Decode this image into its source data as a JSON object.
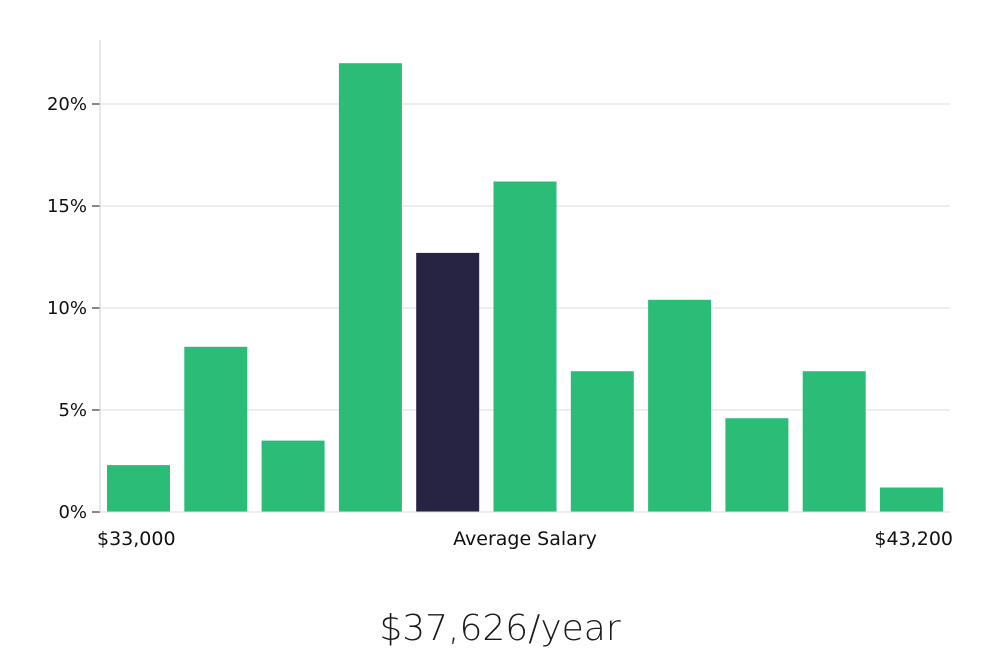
{
  "chart_data": {
    "type": "bar",
    "y_axis": {
      "ylim": [
        0,
        23
      ],
      "ticks": [
        {
          "value": 0,
          "label": "0%"
        },
        {
          "value": 5,
          "label": "5%"
        },
        {
          "value": 10,
          "label": "10%"
        },
        {
          "value": 15,
          "label": "15%"
        },
        {
          "value": 20,
          "label": "20%"
        }
      ],
      "grid": true
    },
    "bins": 11,
    "values": [
      2.3,
      8.1,
      3.5,
      22.0,
      12.7,
      16.2,
      6.9,
      10.4,
      4.6,
      6.9,
      1.2
    ],
    "highlight_index": 4,
    "colors": {
      "bar": "#2bbd77",
      "highlight": "#262343",
      "grid": "#dcdcdc",
      "axis": "#cfcfcf"
    },
    "x_labels": {
      "min": "$33,000",
      "center": "Average Salary",
      "max": "$43,200"
    }
  },
  "average_salary": "$37,626/year"
}
